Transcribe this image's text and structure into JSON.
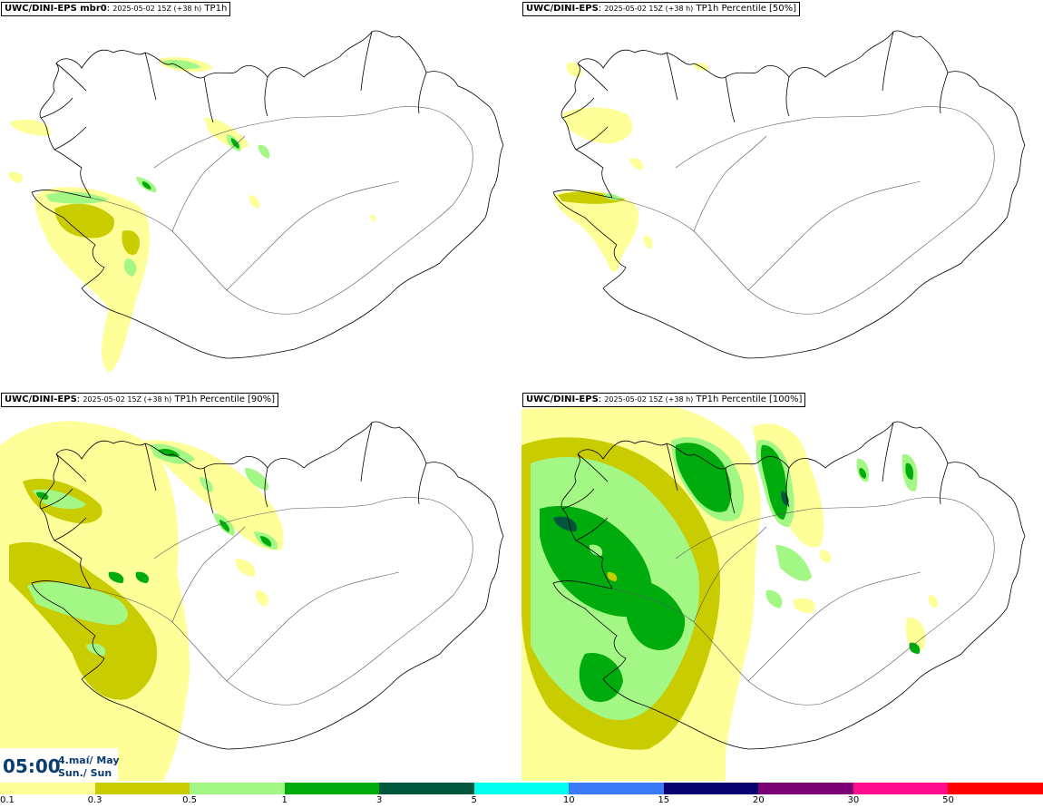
{
  "panels": [
    {
      "model": "UWC/DINI-EPS mbr0",
      "run": "2025-05-02 15Z (+38 h)",
      "field": "TP1h"
    },
    {
      "model": "UWC/DINI-EPS",
      "run": "2025-05-02 15Z (+38 h)",
      "field": "TP1h Percentile [50%]"
    },
    {
      "model": "UWC/DINI-EPS",
      "run": "2025-05-02 15Z (+38 h)",
      "field": "TP1h Percentile [90%]"
    },
    {
      "model": "UWC/DINI-EPS",
      "run": "2025-05-02 15Z (+38 h)",
      "field": "TP1h Percentile [100%]"
    }
  ],
  "valid_time": {
    "time": "05:00",
    "date_line1": "4.maí/ May",
    "date_line2": "Sun./ Sun"
  },
  "colorbar": {
    "colors": [
      "#ffff9a",
      "#c9cc00",
      "#a3f784",
      "#00ac0d",
      "#00573b",
      "#00ffef",
      "#3a7af7",
      "#07006e",
      "#7b0076",
      "#ff0d8d",
      "#ff0000"
    ],
    "ticks": [
      "0.1",
      "0.3",
      "0.5",
      "1",
      "3",
      "5",
      "10",
      "15",
      "20",
      "30",
      "50"
    ]
  },
  "map_colors": {
    "coast": "#000000",
    "roads": "#555555"
  }
}
